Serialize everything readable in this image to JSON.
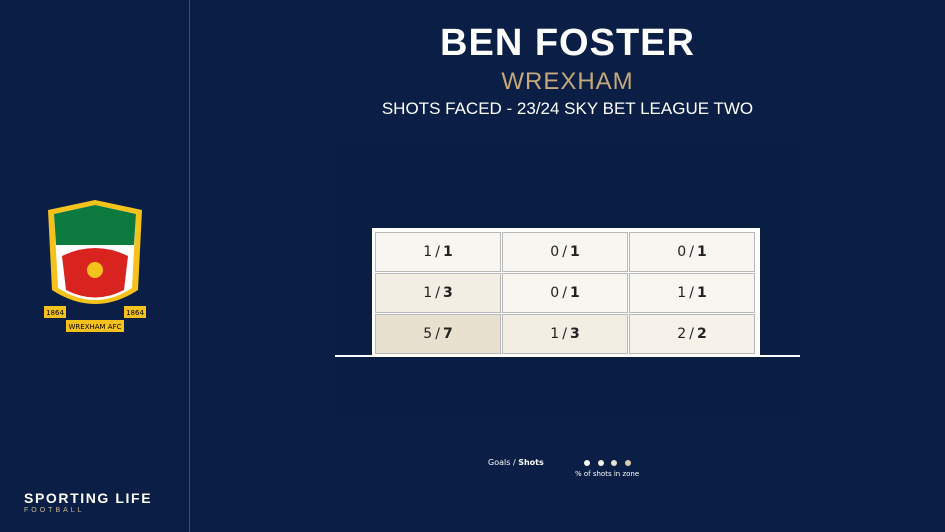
{
  "player": {
    "name": "BEN FOSTER",
    "club": "WREXHAM",
    "subtitle": "SHOTS FACED - 23/24 SKY BET LEAGUE TWO"
  },
  "separator": "/",
  "zones": {
    "rows": [
      [
        {
          "goals": 1,
          "shots": 1,
          "color": "#f8f6f1"
        },
        {
          "goals": 0,
          "shots": 1,
          "color": "#f8f6f1"
        },
        {
          "goals": 0,
          "shots": 1,
          "color": "#f8f6f1"
        }
      ],
      [
        {
          "goals": 1,
          "shots": 3,
          "color": "#f2eee4"
        },
        {
          "goals": 0,
          "shots": 1,
          "color": "#f8f6f1"
        },
        {
          "goals": 1,
          "shots": 1,
          "color": "#f8f6f1"
        }
      ],
      [
        {
          "goals": 5,
          "shots": 7,
          "color": "#e8e1cf"
        },
        {
          "goals": 1,
          "shots": 3,
          "color": "#f2eee4"
        },
        {
          "goals": 2,
          "shots": 2,
          "color": "#f6f2ea"
        }
      ]
    ]
  },
  "legend": {
    "goals": "Goals",
    "shots": "Shots",
    "scale_label": "% of shots in zone",
    "scale_colors": [
      "#f8f6f1",
      "#f2eee4",
      "#e8e1cf",
      "#d9cdb0"
    ]
  },
  "crest": {
    "year_left": "1864",
    "year_right": "1864",
    "club": "WREXHAM AFC"
  },
  "brand": {
    "name": "SPORTING LIFE",
    "section": "FOOTBALL"
  }
}
